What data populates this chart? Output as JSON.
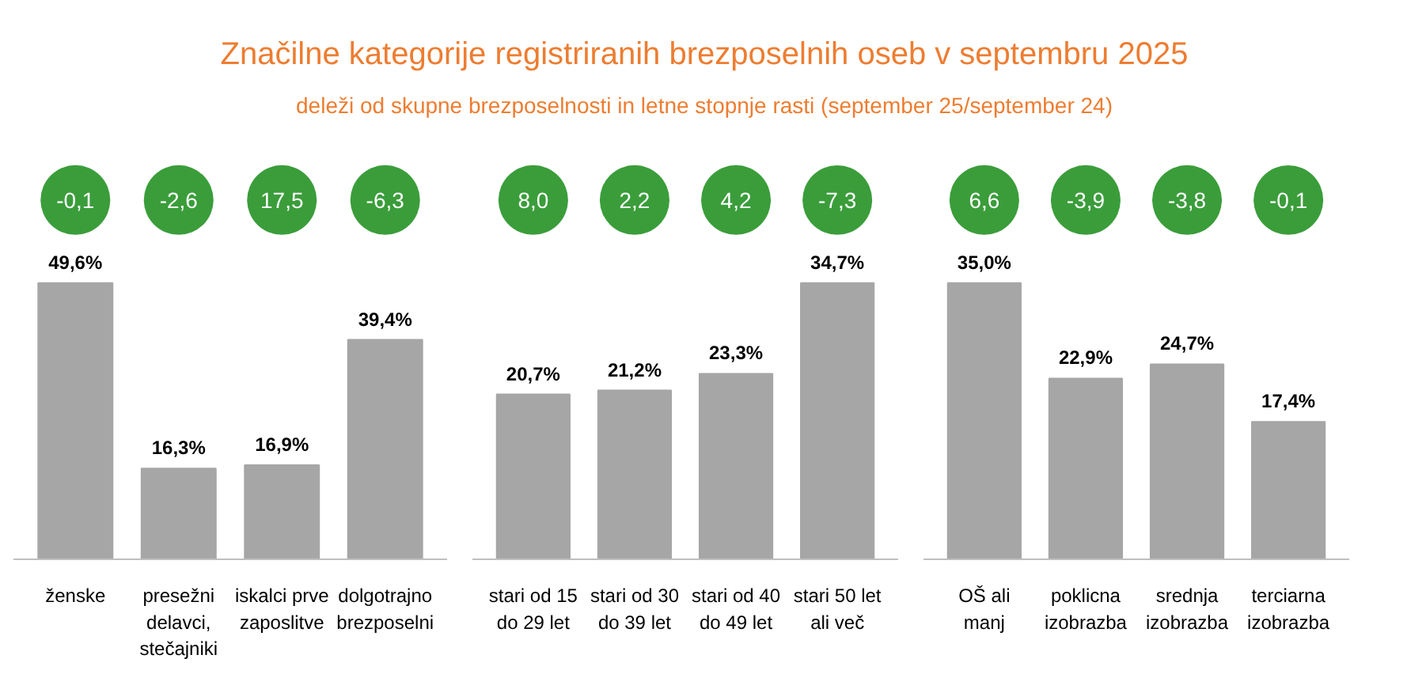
{
  "chart_data": [
    {
      "type": "bar",
      "title": "Značilne kategorije registriranih brezposelnih oseb v septembru 2025",
      "subtitle": "deleži od skupne brezposelnosti in letne stopnje rasti (september 25/september 24)",
      "categories": [
        "ženske",
        "presežni\ndelavci,\nstečajniki",
        "iskalci prve\nzaposlitve",
        "dolgotrajno\nbrezposelni"
      ],
      "values": [
        49.6,
        16.3,
        16.9,
        39.4
      ],
      "value_labels": [
        "49,6%",
        "16,3%",
        "16,9%",
        "39,4%"
      ],
      "color": "#a6a6a6",
      "tick_labels": "x",
      "annotations": [
        "-0,1",
        "-2,6",
        "17,5",
        "-6,3"
      ]
    },
    {
      "type": "bar",
      "categories": [
        "stari od 15\ndo 29 let",
        "stari od 30\ndo 39 let",
        "stari od 40\ndo 49 let",
        "stari 50 let\nali več"
      ],
      "values": [
        20.7,
        21.2,
        23.3,
        34.7
      ],
      "value_labels": [
        "20,7%",
        "21,2%",
        "23,3%",
        "34,7%"
      ],
      "color": "#a6a6a6",
      "tick_labels": "x",
      "annotations": [
        "8,0",
        "2,2",
        "4,2",
        "-7,3"
      ]
    },
    {
      "type": "bar",
      "categories": [
        "OŠ ali\nmanj",
        "poklicna\nizobrazba",
        "srednja\nizobrazba",
        "terciarna\nizobrazba"
      ],
      "values": [
        35.0,
        22.9,
        24.7,
        17.4
      ],
      "value_labels": [
        "35,0%",
        "22,9%",
        "24,7%",
        "17,4%"
      ],
      "color": "#a6a6a6",
      "tick_labels": "x",
      "annotations": [
        "6,6",
        "-3,9",
        "-3,8",
        "-0,1"
      ]
    }
  ]
}
